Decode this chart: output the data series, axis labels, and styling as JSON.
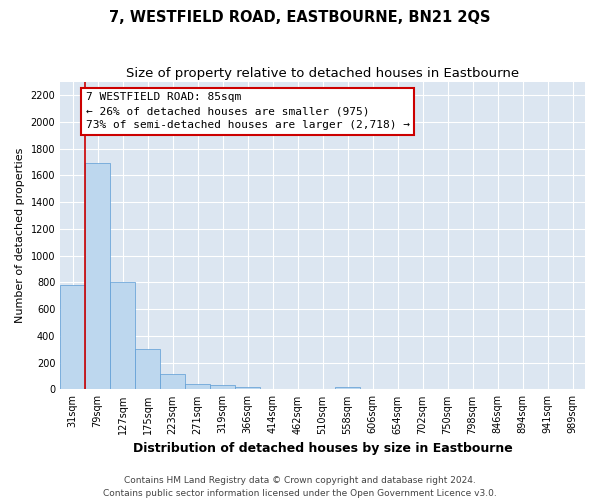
{
  "title": "7, WESTFIELD ROAD, EASTBOURNE, BN21 2QS",
  "subtitle": "Size of property relative to detached houses in Eastbourne",
  "xlabel": "Distribution of detached houses by size in Eastbourne",
  "ylabel": "Number of detached properties",
  "categories": [
    "31sqm",
    "79sqm",
    "127sqm",
    "175sqm",
    "223sqm",
    "271sqm",
    "319sqm",
    "366sqm",
    "414sqm",
    "462sqm",
    "510sqm",
    "558sqm",
    "606sqm",
    "654sqm",
    "702sqm",
    "750sqm",
    "798sqm",
    "846sqm",
    "894sqm",
    "941sqm",
    "989sqm"
  ],
  "values": [
    780,
    1690,
    800,
    300,
    115,
    40,
    35,
    20,
    5,
    5,
    0,
    15,
    0,
    0,
    0,
    0,
    0,
    0,
    0,
    0,
    0
  ],
  "bar_color": "#bdd7ee",
  "bar_edge_color": "#5b9bd5",
  "property_line_x": 0.5,
  "property_line_color": "#cc0000",
  "annotation_line1": "7 WESTFIELD ROAD: 85sqm",
  "annotation_line2": "← 26% of detached houses are smaller (975)",
  "annotation_line3": "73% of semi-detached houses are larger (2,718) →",
  "annotation_box_color": "#ffffff",
  "annotation_box_edge": "#cc0000",
  "ylim": [
    0,
    2300
  ],
  "yticks": [
    0,
    200,
    400,
    600,
    800,
    1000,
    1200,
    1400,
    1600,
    1800,
    2000,
    2200
  ],
  "footer_line1": "Contains HM Land Registry data © Crown copyright and database right 2024.",
  "footer_line2": "Contains public sector information licensed under the Open Government Licence v3.0.",
  "bg_color": "#ffffff",
  "plot_bg_color": "#dce6f1",
  "grid_color": "#ffffff",
  "title_fontsize": 10.5,
  "subtitle_fontsize": 9.5,
  "xlabel_fontsize": 9,
  "ylabel_fontsize": 8,
  "tick_fontsize": 7,
  "annot_fontsize": 8,
  "footer_fontsize": 6.5
}
